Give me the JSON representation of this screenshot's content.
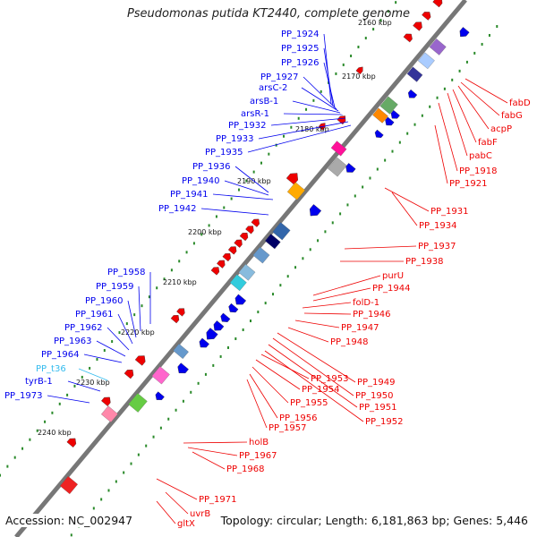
{
  "title": "Pseudomonas putida KT2440, complete genome",
  "footer": {
    "accession": "Accession: NC_002947",
    "summary": "Topology: circular; Length: 6,181,863 bp; Genes: 5,446"
  },
  "colors": {
    "forward": "#0000ee",
    "reverse": "#ee0000",
    "trna": "#33bbee",
    "backbone": "#777777",
    "ticks": "#2a8a2a"
  },
  "ticks": [
    "2160 kbp",
    "2170 kbp",
    "2180 kbp",
    "2190 kbp",
    "2200 kbp",
    "2210 kbp",
    "2220 kbp",
    "2230 kbp",
    "2240 kbp"
  ],
  "left_labels": [
    {
      "text": "PP_1924",
      "type": "forward"
    },
    {
      "text": "PP_1925",
      "type": "forward"
    },
    {
      "text": "PP_1926",
      "type": "forward"
    },
    {
      "text": "PP_1927",
      "type": "forward"
    },
    {
      "text": "arsC-2",
      "type": "forward"
    },
    {
      "text": "arsB-1",
      "type": "forward"
    },
    {
      "text": "arsR-1",
      "type": "forward"
    },
    {
      "text": "PP_1932",
      "type": "forward"
    },
    {
      "text": "PP_1933",
      "type": "forward"
    },
    {
      "text": "PP_1935",
      "type": "forward"
    },
    {
      "text": "PP_1936",
      "type": "forward"
    },
    {
      "text": "PP_1940",
      "type": "forward"
    },
    {
      "text": "PP_1941",
      "type": "forward"
    },
    {
      "text": "PP_1942",
      "type": "forward"
    },
    {
      "text": "PP_1958",
      "type": "forward"
    },
    {
      "text": "PP_1959",
      "type": "forward"
    },
    {
      "text": "PP_1960",
      "type": "forward"
    },
    {
      "text": "PP_1961",
      "type": "forward"
    },
    {
      "text": "PP_1962",
      "type": "forward"
    },
    {
      "text": "PP_1963",
      "type": "forward"
    },
    {
      "text": "PP_1964",
      "type": "forward"
    },
    {
      "text": "PP_t36",
      "type": "trna"
    },
    {
      "text": "tyrB-1",
      "type": "forward"
    },
    {
      "text": "PP_1973",
      "type": "forward"
    }
  ],
  "right_labels": [
    {
      "text": "fabD",
      "type": "reverse"
    },
    {
      "text": "fabG",
      "type": "reverse"
    },
    {
      "text": "acpP",
      "type": "reverse"
    },
    {
      "text": "fabF",
      "type": "reverse"
    },
    {
      "text": "pabC",
      "type": "reverse"
    },
    {
      "text": "PP_1918",
      "type": "reverse"
    },
    {
      "text": "PP_1921",
      "type": "reverse"
    },
    {
      "text": "PP_1931",
      "type": "reverse"
    },
    {
      "text": "PP_1934",
      "type": "reverse"
    },
    {
      "text": "PP_1937",
      "type": "reverse"
    },
    {
      "text": "PP_1938",
      "type": "reverse"
    },
    {
      "text": "purU",
      "type": "reverse"
    },
    {
      "text": "PP_1944",
      "type": "reverse"
    },
    {
      "text": "folD-1",
      "type": "reverse"
    },
    {
      "text": "PP_1946",
      "type": "reverse"
    },
    {
      "text": "PP_1947",
      "type": "reverse"
    },
    {
      "text": "PP_1948",
      "type": "reverse"
    },
    {
      "text": "PP_1949",
      "type": "reverse"
    },
    {
      "text": "PP_1950",
      "type": "reverse"
    },
    {
      "text": "PP_1951",
      "type": "reverse"
    },
    {
      "text": "PP_1952",
      "type": "reverse"
    },
    {
      "text": "PP_1953",
      "type": "reverse"
    },
    {
      "text": "PP_1954",
      "type": "reverse"
    },
    {
      "text": "PP_1955",
      "type": "reverse"
    },
    {
      "text": "PP_1956",
      "type": "reverse"
    },
    {
      "text": "PP_1957",
      "type": "reverse"
    },
    {
      "text": "holB",
      "type": "reverse"
    },
    {
      "text": "PP_1967",
      "type": "reverse"
    },
    {
      "text": "PP_1968",
      "type": "reverse"
    },
    {
      "text": "PP_1971",
      "type": "reverse"
    },
    {
      "text": "uvrB",
      "type": "reverse"
    },
    {
      "text": "gltX",
      "type": "reverse"
    }
  ]
}
